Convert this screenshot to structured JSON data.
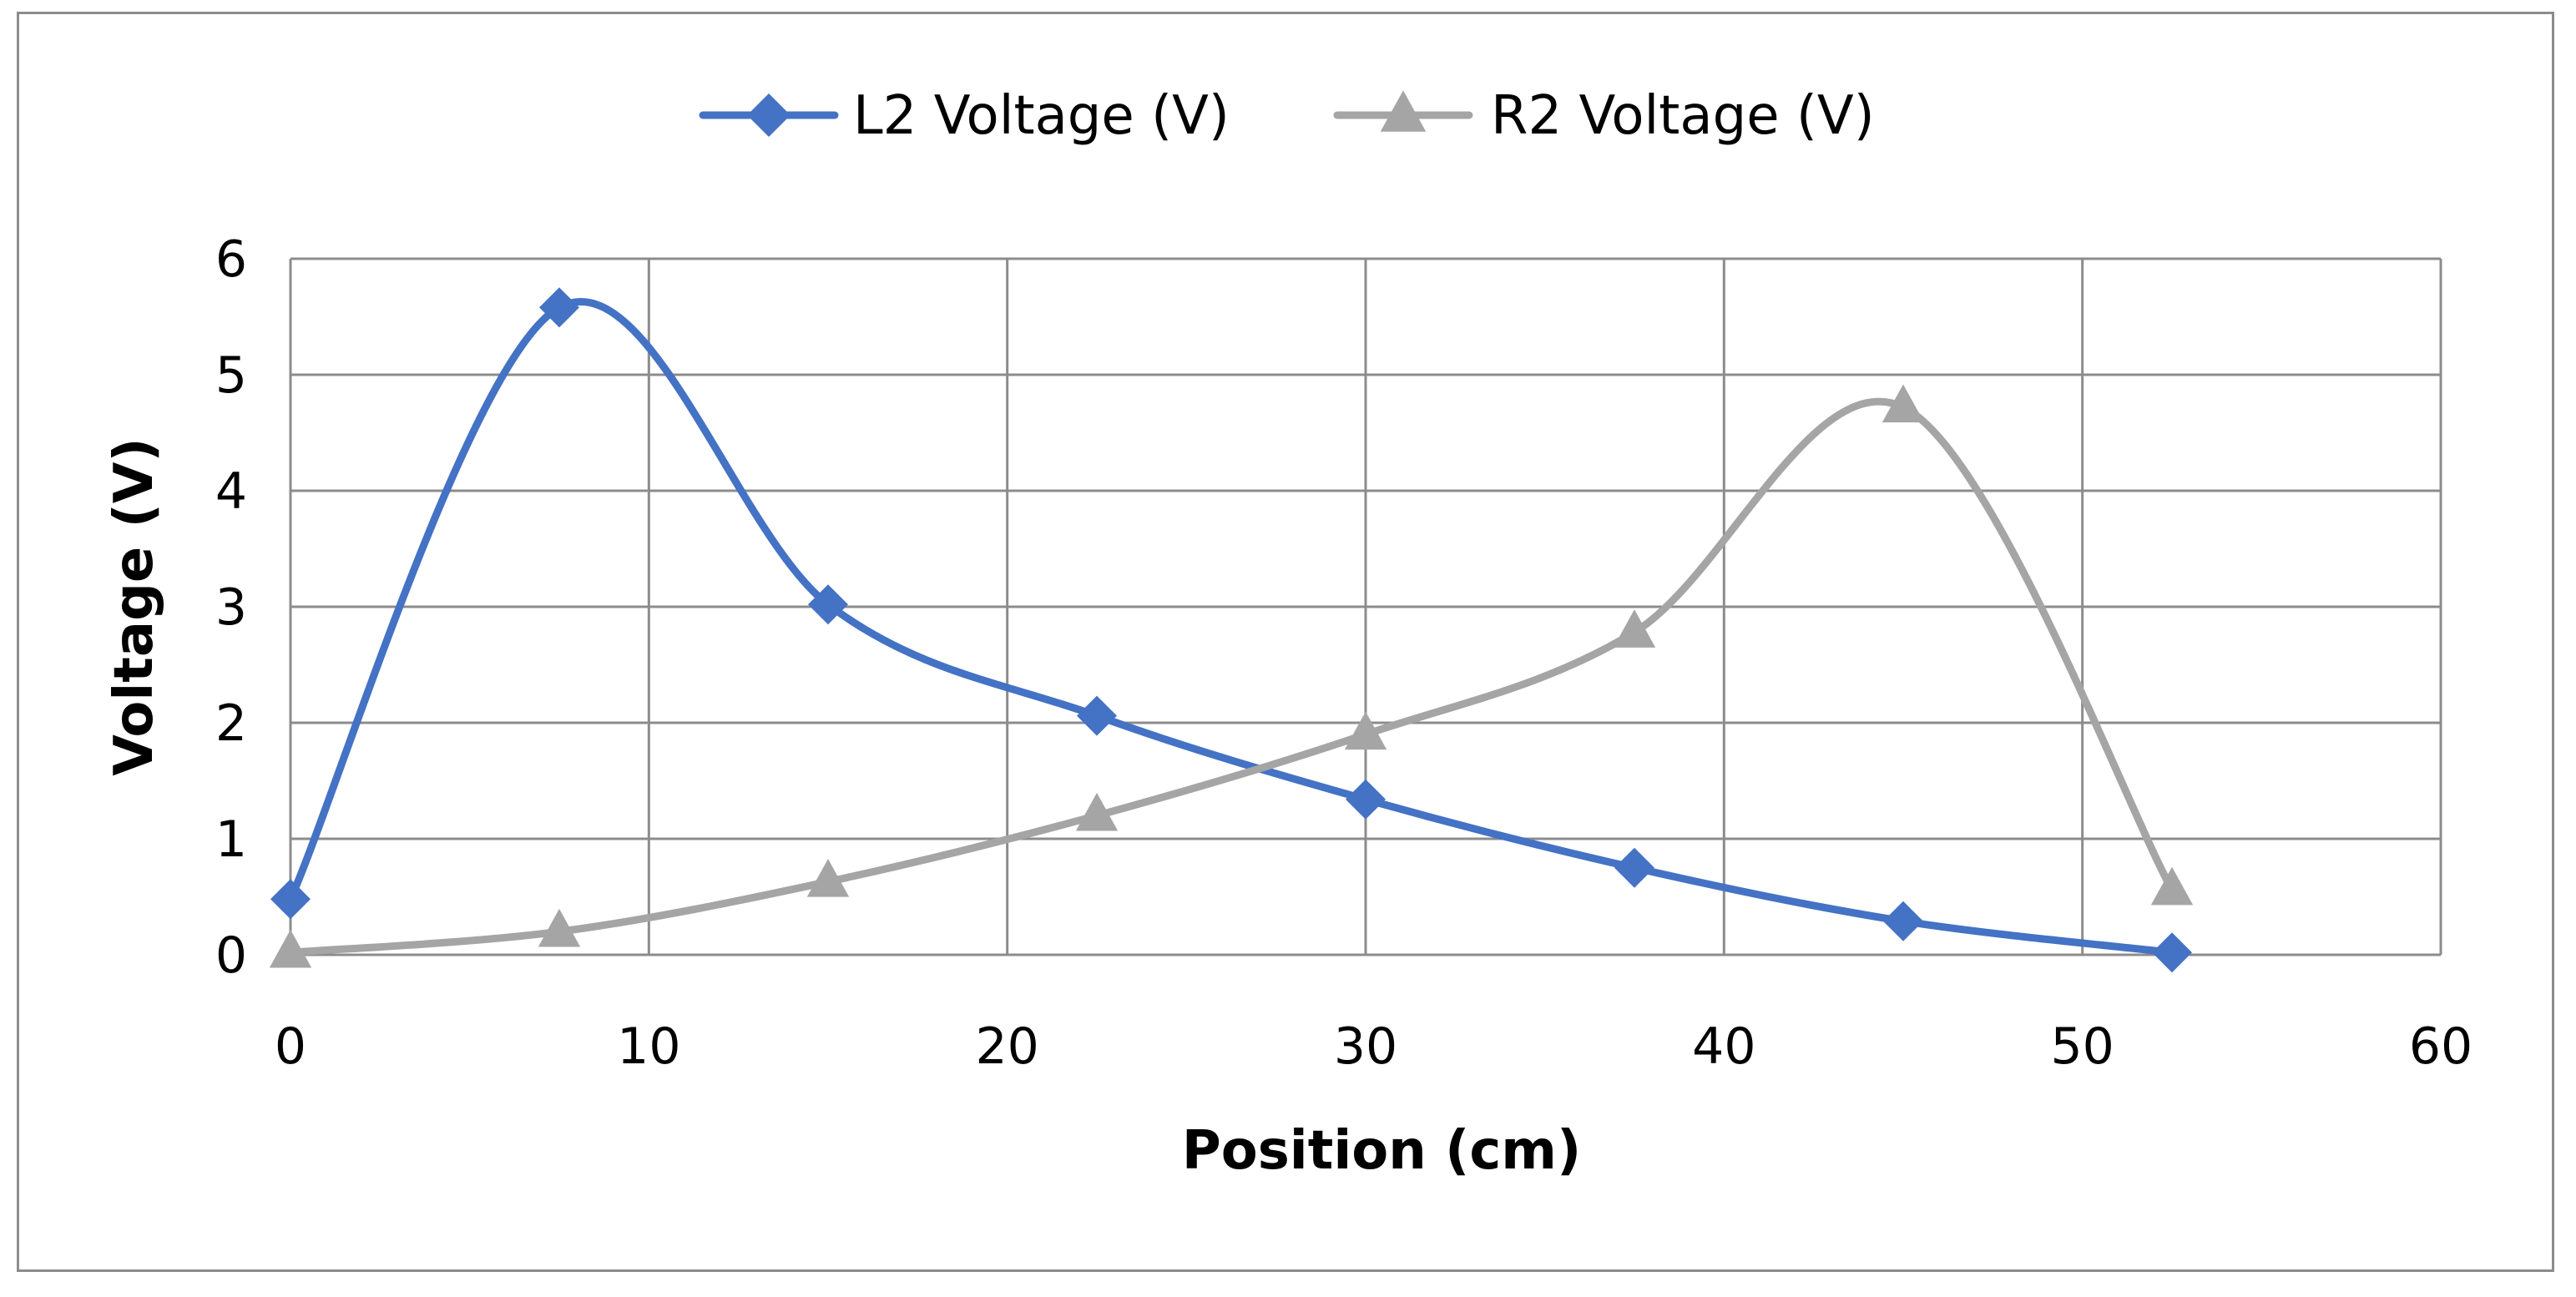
{
  "chart_data": {
    "type": "line",
    "title": "",
    "xlabel": "Position (cm)",
    "ylabel": "Voltage (V)",
    "xlim": [
      0,
      60
    ],
    "ylim": [
      0,
      6
    ],
    "xticks": [
      0,
      10,
      20,
      30,
      40,
      50,
      60
    ],
    "yticks": [
      0,
      1,
      2,
      3,
      4,
      5,
      6
    ],
    "grid": true,
    "legend_position": "top",
    "smooth": true,
    "series": [
      {
        "name": "L2 Voltage (V)",
        "color": "#4472C4",
        "marker": "diamond",
        "x": [
          0,
          7.5,
          15,
          22.5,
          30,
          37.5,
          45,
          52.5
        ],
        "y": [
          0.48,
          5.58,
          3.02,
          2.06,
          1.34,
          0.75,
          0.29,
          0.02
        ]
      },
      {
        "name": "R2 Voltage (V)",
        "color": "#A5A5A5",
        "marker": "triangle",
        "x": [
          0,
          7.5,
          15,
          22.5,
          30,
          37.5,
          45,
          52.5
        ],
        "y": [
          0.02,
          0.2,
          0.63,
          1.2,
          1.9,
          2.78,
          4.72,
          0.56
        ]
      }
    ]
  }
}
